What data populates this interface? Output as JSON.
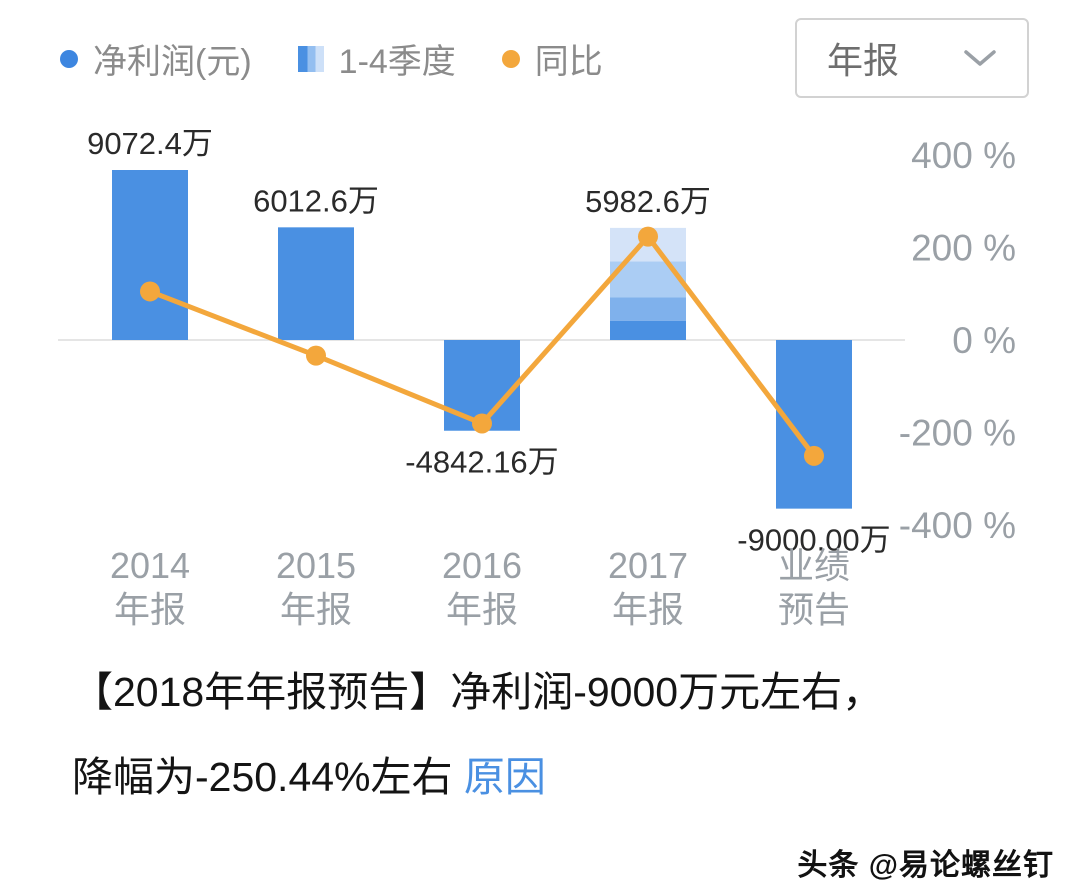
{
  "legend": {
    "items": [
      {
        "label": "净利润(元)",
        "marker": "dot",
        "color": "#3d86e0"
      },
      {
        "label": "1-4季度",
        "marker": "striped-square",
        "colors": [
          "#4a90e2",
          "#93bef0",
          "#cde0f8"
        ]
      },
      {
        "label": "同比",
        "marker": "dot",
        "color": "#f3a73c"
      }
    ]
  },
  "period_select": {
    "value": "年报"
  },
  "chart_data": {
    "type": "bar",
    "subtype": "bar-with-line-overlay",
    "categories": [
      [
        "2014",
        "年报"
      ],
      [
        "2015",
        "年报"
      ],
      [
        "2016",
        "年报"
      ],
      [
        "2017",
        "年报"
      ],
      [
        "业绩",
        "预告"
      ]
    ],
    "series": [
      {
        "name": "净利润(元)",
        "type": "bar",
        "unit": "万",
        "values": [
          9072.4,
          6012.6,
          -4842.16,
          5982.6,
          -9000.0
        ],
        "labels": [
          "9072.4万",
          "6012.6万",
          "-4842.16万",
          "5982.6万",
          "-9000.00万"
        ]
      },
      {
        "name": "同比",
        "type": "line",
        "unit": "%",
        "values": [
          105,
          -33.7,
          -180.5,
          223.6,
          -250.44
        ]
      }
    ],
    "y_axis_right": {
      "ticks": [
        "400 %",
        "200 %",
        "0 %",
        "-200 %",
        "-400 %"
      ],
      "range": [
        400,
        -400
      ]
    },
    "quarter_breakdown_index": 3,
    "quarter_fractions_top": [
      0.3,
      0.32,
      0.21,
      0.17
    ],
    "quarter_colors": [
      "#d4e3f8",
      "#abcdf4",
      "#7fb1ec",
      "#4a90e2"
    ],
    "bar_color": "#4a90e2",
    "line_color": "#f3a73c",
    "axis_label_color": "#9aa0a6",
    "value_label_color": "#2a2a2a",
    "grid": false,
    "legend_position": "top"
  },
  "summary": {
    "line1": "【2018年年报预告】净利润-9000万元左右，",
    "line2": "降幅为-250.44%左右 ",
    "link_label": "原因"
  },
  "watermark": "头条 @易论螺丝钉"
}
